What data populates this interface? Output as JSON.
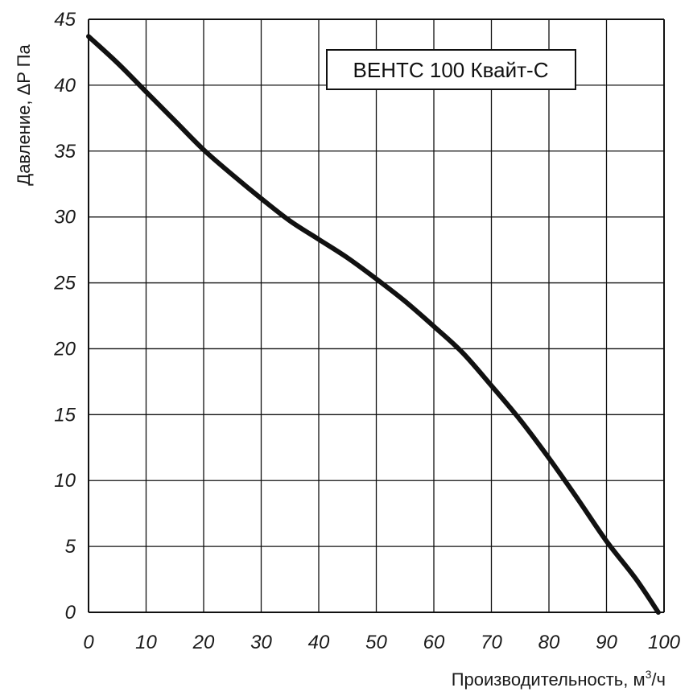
{
  "chart_data": {
    "type": "line",
    "title": "",
    "xlabel": "Производительность, м³/ч",
    "xlabel_parts": {
      "main": "Производительность, м",
      "sup": "3",
      "tail": "/ч"
    },
    "ylabel": "Давление, ΔP Па",
    "xlim": [
      0,
      100
    ],
    "ylim": [
      0,
      45
    ],
    "x_ticks": [
      0,
      10,
      20,
      30,
      40,
      50,
      60,
      70,
      80,
      90,
      100
    ],
    "y_ticks": [
      0,
      5,
      10,
      15,
      20,
      25,
      30,
      35,
      40,
      45
    ],
    "x_tick_labels": [
      "0",
      "10",
      "20",
      "30",
      "40",
      "50",
      "60",
      "70",
      "80",
      "90",
      "100"
    ],
    "y_tick_labels": [
      "0",
      "5",
      "10",
      "15",
      "20",
      "25",
      "30",
      "35",
      "40",
      "45"
    ],
    "grid": true,
    "legend_position": "top-right",
    "series": [
      {
        "name": "ВЕНТС 100 Квайт-С",
        "color": "#111111",
        "x": [
          0,
          5,
          10,
          15,
          20,
          25,
          30,
          35,
          40,
          45,
          50,
          55,
          60,
          65,
          70,
          75,
          80,
          85,
          90,
          95,
          99
        ],
        "y": [
          43.7,
          41.7,
          39.5,
          37.3,
          35.1,
          33.2,
          31.4,
          29.7,
          28.3,
          26.9,
          25.3,
          23.6,
          21.7,
          19.7,
          17.2,
          14.6,
          11.7,
          8.6,
          5.4,
          2.6,
          0
        ]
      }
    ]
  }
}
